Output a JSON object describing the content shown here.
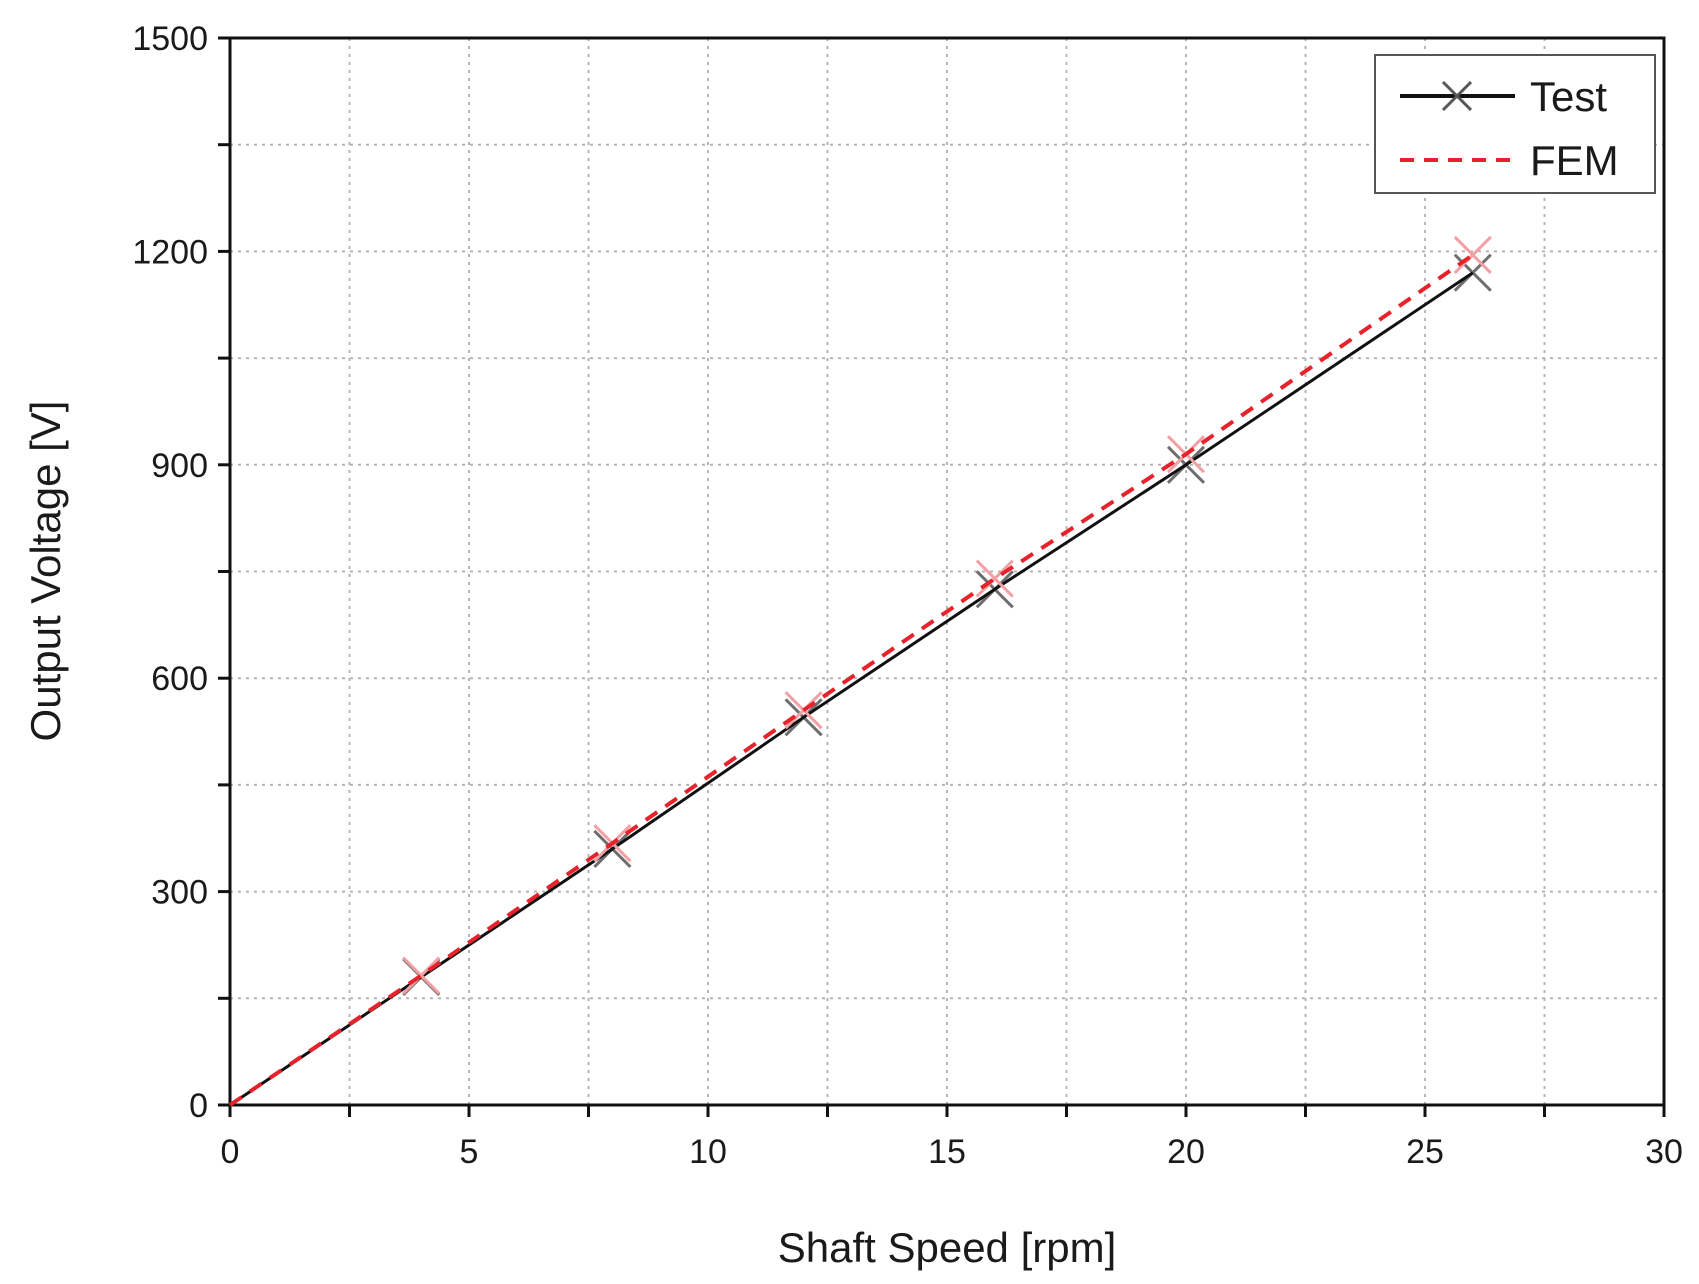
{
  "chart_data": {
    "type": "line",
    "xlabel": "Shaft Speed [rpm]",
    "ylabel": "Output Voltage [V]",
    "xlim": [
      0,
      30
    ],
    "ylim": [
      0,
      1500
    ],
    "x_ticks": [
      0,
      5,
      10,
      15,
      20,
      25,
      30
    ],
    "y_ticks": [
      0,
      300,
      600,
      900,
      1200,
      1500
    ],
    "grid": true,
    "legend_position": "top-right",
    "series": [
      {
        "name": "Test",
        "color": "#111111",
        "line": "solid",
        "marker": "x",
        "x": [
          0,
          4,
          8,
          12,
          16,
          20,
          26
        ],
        "y": [
          0,
          180,
          360,
          545,
          725,
          900,
          1170
        ]
      },
      {
        "name": "FEM",
        "color": "#e8222b",
        "line": "dashed",
        "marker": "x",
        "x": [
          0,
          4,
          8,
          12,
          16,
          20,
          26
        ],
        "y": [
          0,
          182,
          368,
          555,
          740,
          915,
          1195
        ]
      }
    ]
  }
}
